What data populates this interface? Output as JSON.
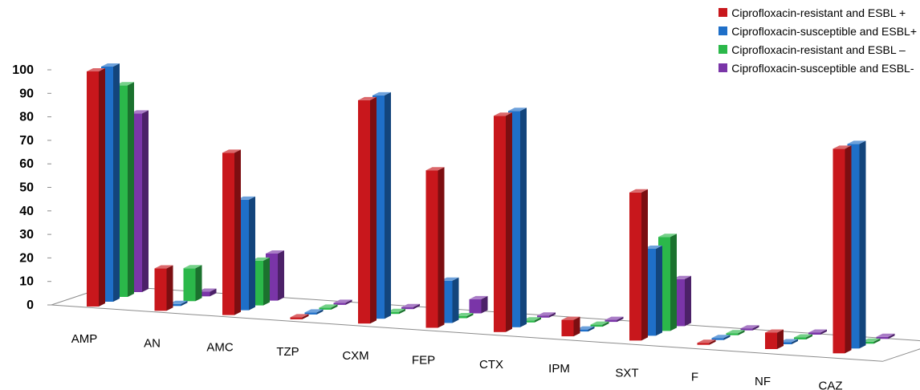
{
  "chart_data": {
    "type": "bar",
    "title": "",
    "xlabel": "",
    "ylabel": "",
    "ylim": [
      0,
      100
    ],
    "yticks": [
      0,
      10,
      20,
      30,
      40,
      50,
      60,
      70,
      80,
      90,
      100
    ],
    "grid": false,
    "legend_position": "top-right",
    "categories": [
      "AMP",
      "AN",
      "AMC",
      "TZP",
      "CXM",
      "FEP",
      "CTX",
      "IPM",
      "SXT",
      "F",
      "NF",
      "CAZ"
    ],
    "series": [
      {
        "name": "Ciprofloxacin-resistant and ESBL +",
        "color": "#c8171c",
        "values": [
          100,
          18,
          69,
          0,
          95,
          67,
          92,
          7,
          63,
          0,
          7,
          87
        ]
      },
      {
        "name": "Ciprofloxacin-susceptible and ESBL+",
        "color": "#1f6fc8",
        "values": [
          100,
          0,
          47,
          0,
          95,
          18,
          92,
          0,
          37,
          0,
          0,
          87
        ]
      },
      {
        "name": "Ciprofloxacin-resistant and ESBL –",
        "color": "#2bb84a",
        "values": [
          90,
          14,
          19,
          0,
          0,
          0,
          0,
          0,
          40,
          0,
          0,
          0
        ]
      },
      {
        "name": "Ciprofloxacin-susceptible and ESBL-",
        "color": "#7a35a8",
        "values": [
          76,
          2,
          20,
          0,
          0,
          6,
          0,
          0,
          20,
          0,
          0,
          0
        ]
      }
    ]
  }
}
